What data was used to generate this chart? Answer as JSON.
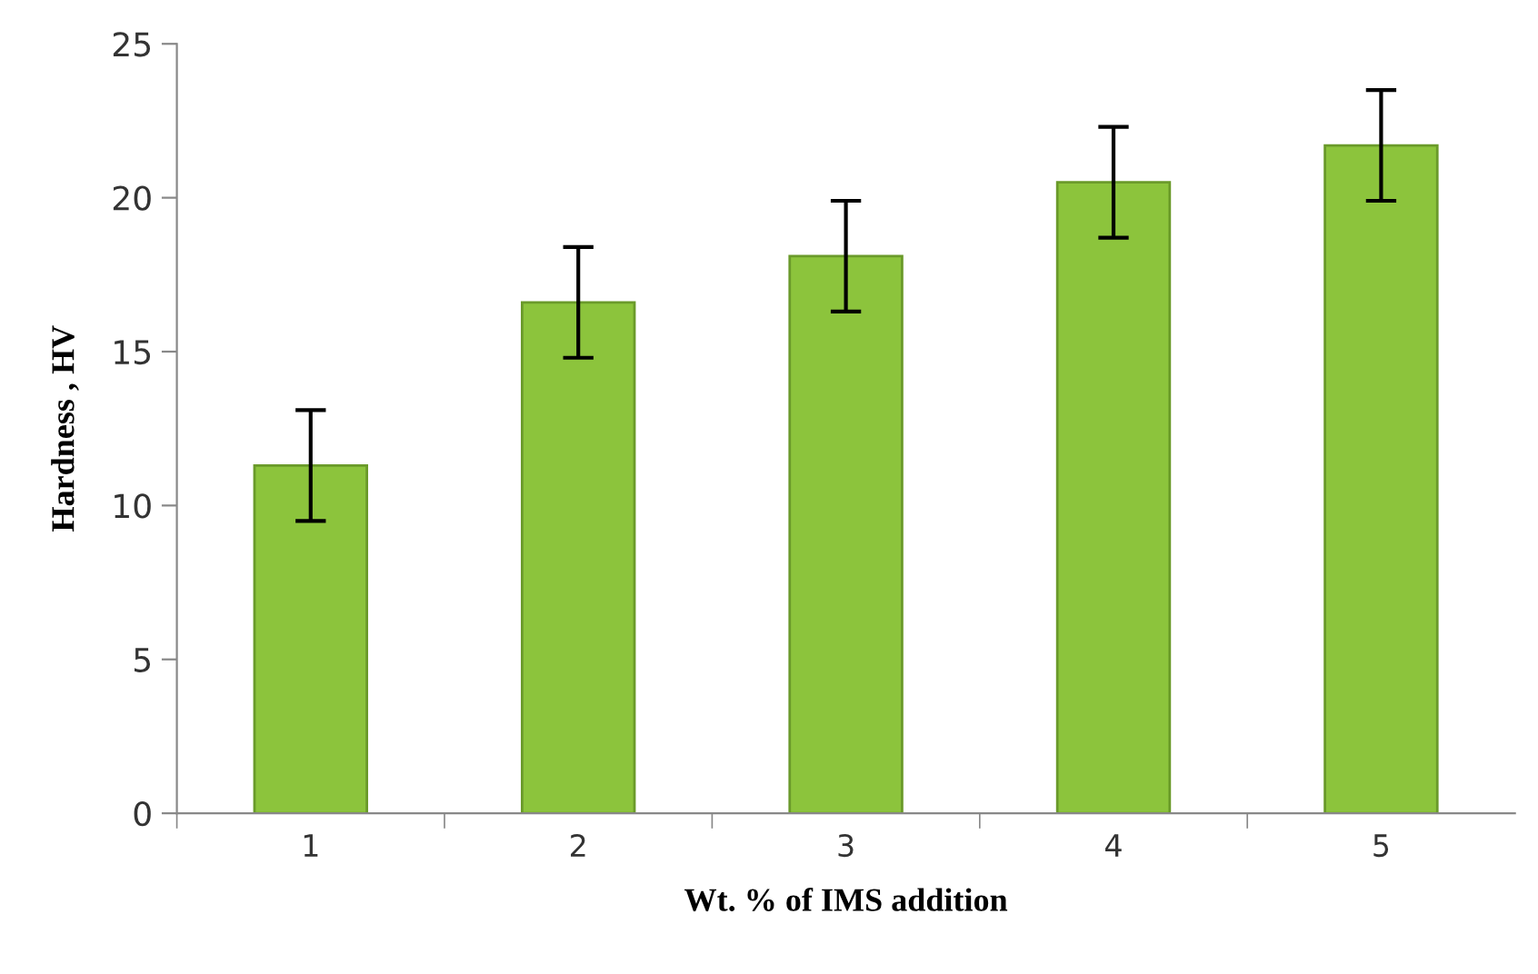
{
  "chart_data": {
    "type": "bar",
    "xlabel": "Wt. % of IMS addition",
    "ylabel": "Hardness , HV",
    "categories": [
      "1",
      "2",
      "3",
      "4",
      "5"
    ],
    "values": [
      11.3,
      16.6,
      18.1,
      20.5,
      21.7
    ],
    "errors": [
      1.8,
      1.8,
      1.8,
      1.8,
      1.8
    ],
    "color": "#8cc43c",
    "ylim": [
      0,
      25
    ],
    "yticks": [
      0,
      5,
      10,
      15,
      20,
      25
    ],
    "grid": false,
    "legend": false
  }
}
